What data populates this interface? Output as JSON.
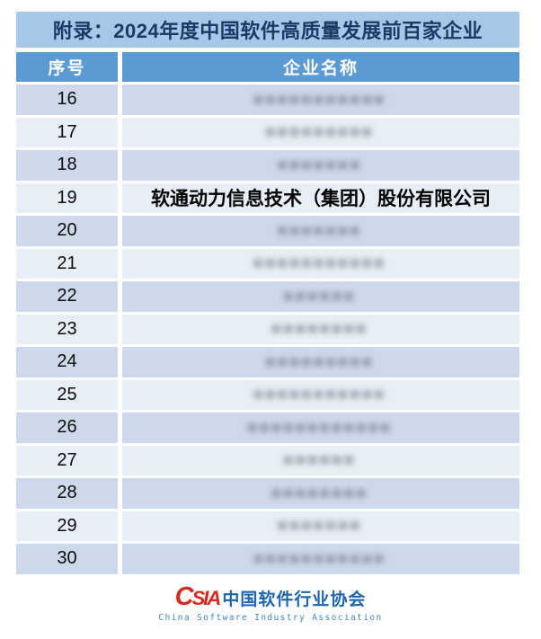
{
  "title": {
    "text": "附录：2024年度中国软件高质量发展前百家企业",
    "bg": "#a6c7e7",
    "color": "#1b3a66"
  },
  "table": {
    "header": {
      "col_no": "序号",
      "col_name": "企业名称",
      "bg": "#5b9ad2",
      "color": "#ffffff"
    },
    "row_colors": {
      "even": "#cdd9ea",
      "odd": "#e8eef5"
    },
    "redacted_glyph": "■",
    "rows": [
      {
        "no": "16",
        "name": "",
        "redacted": true,
        "blocks": 11
      },
      {
        "no": "17",
        "name": "",
        "redacted": true,
        "blocks": 9
      },
      {
        "no": "18",
        "name": "",
        "redacted": true,
        "blocks": 7
      },
      {
        "no": "19",
        "name": "软通动力信息技术（集团）股份有限公司",
        "redacted": false,
        "blocks": 0
      },
      {
        "no": "20",
        "name": "",
        "redacted": true,
        "blocks": 7
      },
      {
        "no": "21",
        "name": "",
        "redacted": true,
        "blocks": 11
      },
      {
        "no": "22",
        "name": "",
        "redacted": true,
        "blocks": 6
      },
      {
        "no": "23",
        "name": "",
        "redacted": true,
        "blocks": 8
      },
      {
        "no": "24",
        "name": "",
        "redacted": true,
        "blocks": 9
      },
      {
        "no": "25",
        "name": "",
        "redacted": true,
        "blocks": 11
      },
      {
        "no": "26",
        "name": "",
        "redacted": true,
        "blocks": 12
      },
      {
        "no": "27",
        "name": "",
        "redacted": true,
        "blocks": 6
      },
      {
        "no": "28",
        "name": "",
        "redacted": true,
        "blocks": 8
      },
      {
        "no": "29",
        "name": "",
        "redacted": true,
        "blocks": 7
      },
      {
        "no": "30",
        "name": "",
        "redacted": true,
        "blocks": 11
      }
    ]
  },
  "footer_logo": {
    "acronym_c": "C",
    "acronym_rest": "SIA",
    "cn_name": "中国软件行业协会",
    "en_name": "China Software Industry Association",
    "acronym_color": "#d32b1f",
    "cn_color": "#1e64ae",
    "en_color": "#4183c4"
  }
}
